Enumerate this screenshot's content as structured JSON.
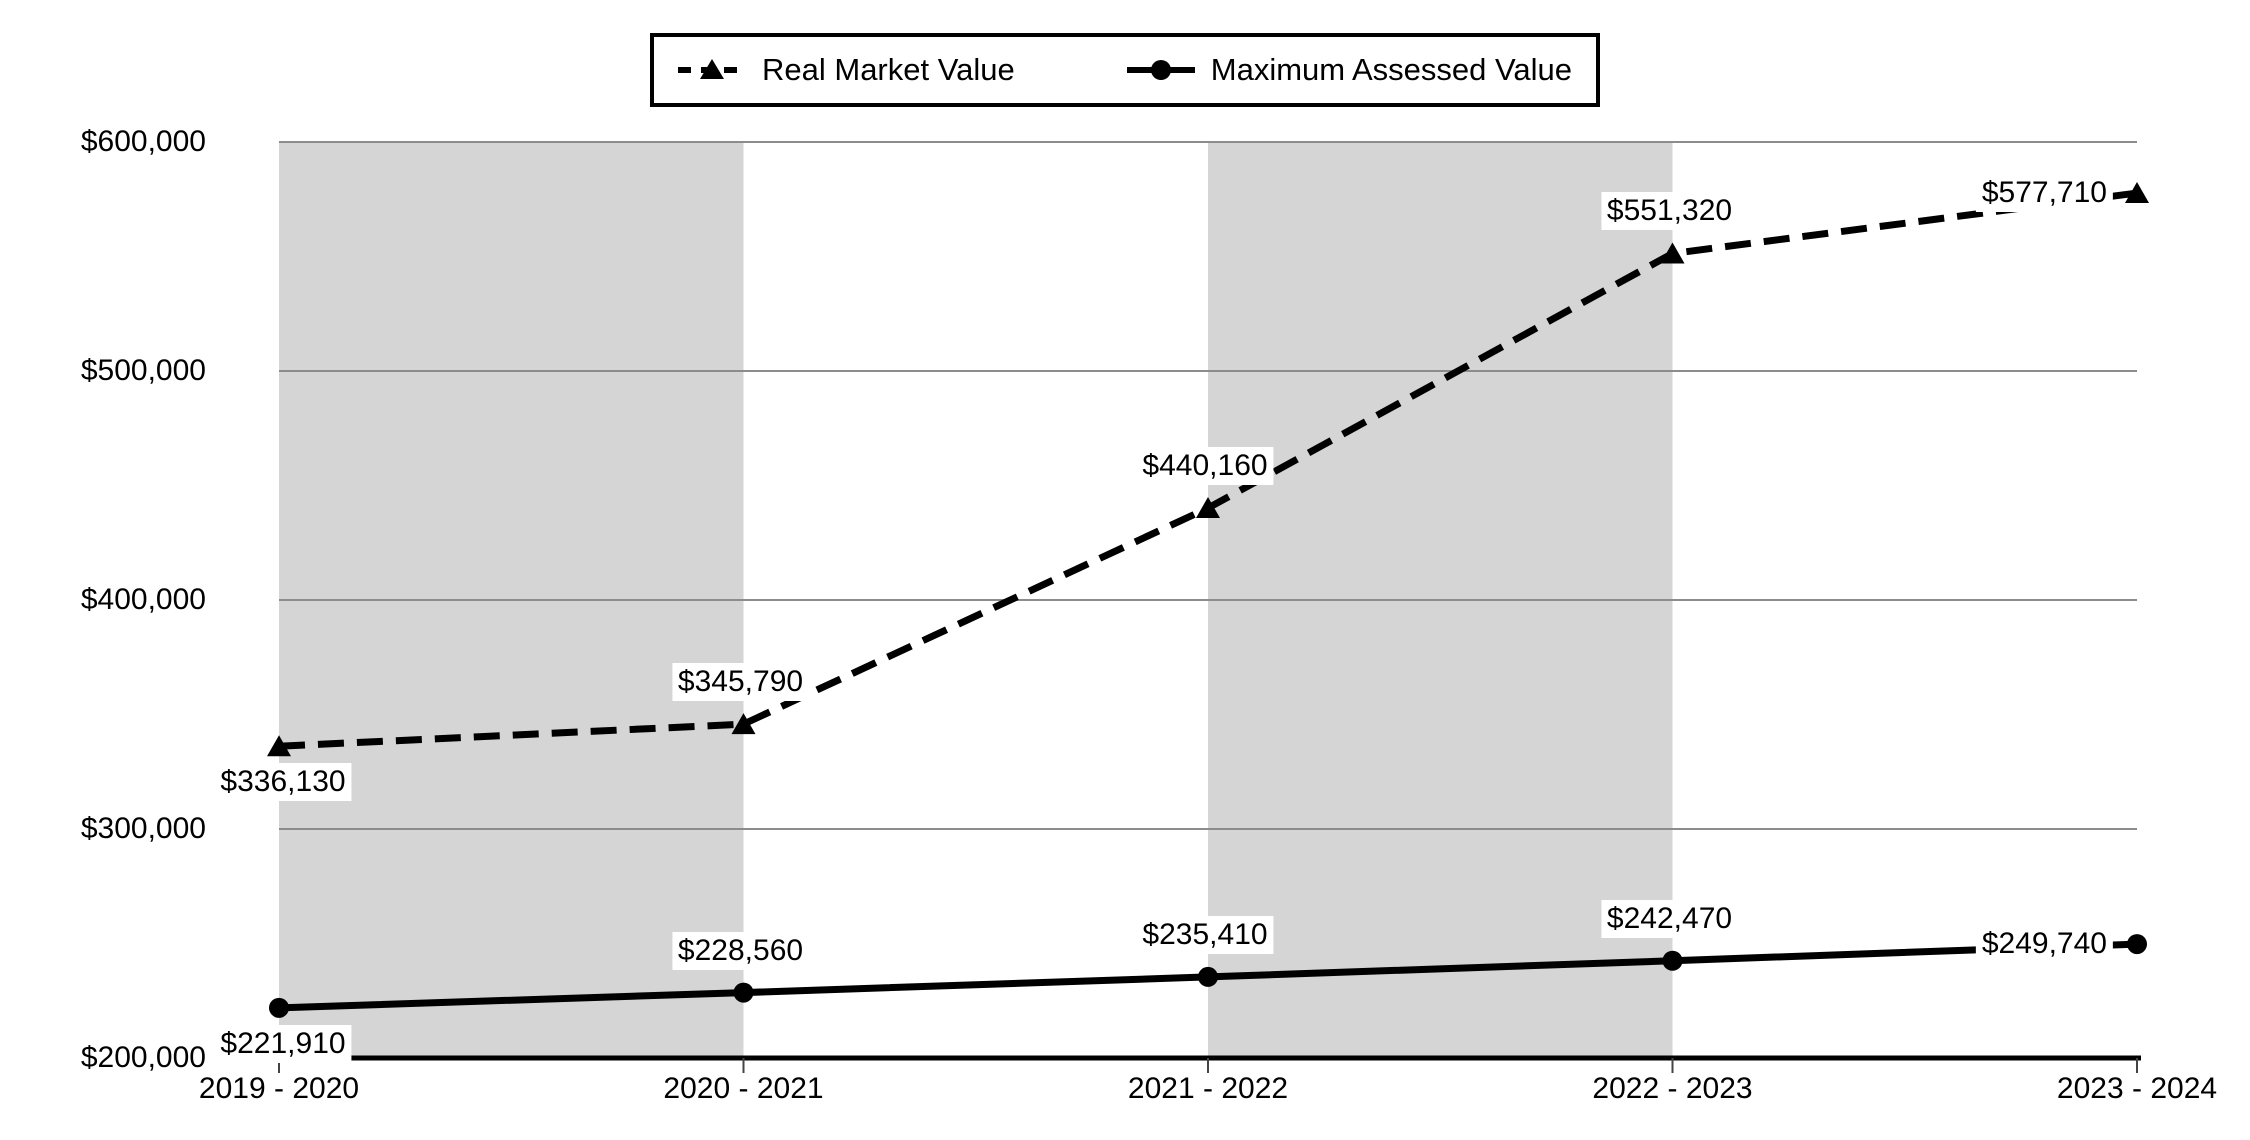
{
  "legend": {
    "items": [
      {
        "label": "Real Market Value"
      },
      {
        "label": "Maximum Assessed Value"
      }
    ]
  },
  "chart_data": {
    "type": "line",
    "categories": [
      "2019 - 2020",
      "2020 - 2021",
      "2021 - 2022",
      "2022 - 2023",
      "2023 - 2024"
    ],
    "series": [
      {
        "name": "Real Market Value",
        "line": "dashed",
        "marker": "triangle",
        "values": [
          336130,
          345790,
          440160,
          551320,
          577710
        ],
        "data_labels": [
          "$336,130",
          "$345,790",
          "$440,160",
          "$551,320",
          "$577,710"
        ]
      },
      {
        "name": "Maximum Assessed Value",
        "line": "solid",
        "marker": "circle",
        "values": [
          221910,
          228560,
          235410,
          242470,
          249740
        ],
        "data_labels": [
          "$221,910",
          "$228,560",
          "$235,410",
          "$242,470",
          "$249,740"
        ]
      }
    ],
    "ylim": [
      200000,
      600000
    ],
    "ytick_step": 100000,
    "ytick_labels": [
      "$200,000",
      "$300,000",
      "$400,000",
      "$500,000",
      "$600,000"
    ],
    "xlabel": "",
    "ylabel": "",
    "grid": "horizontal",
    "legend_position": "top-center",
    "background_bands": {
      "between_category_indexes": [
        [
          0,
          1
        ],
        [
          2,
          3
        ]
      ]
    }
  },
  "colors": {
    "background": "#ffffff",
    "band_gray": "#d5d5d5",
    "gridline_gray": "#8c8c8c",
    "axis_black": "#000000",
    "series_black": "#000000",
    "label_background": "#ffffff"
  }
}
